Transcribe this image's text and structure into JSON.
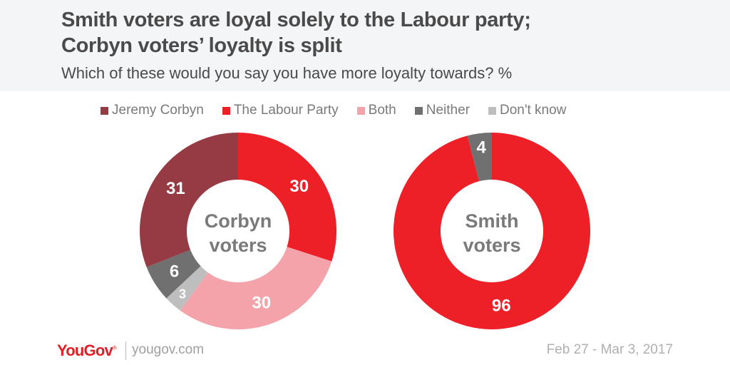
{
  "header": {
    "title_line1": "Smith voters are loyal solely to the Labour party;",
    "title_line2": "Corbyn voters’ loyalty is split",
    "subtitle": "Which of these would you say you have more loyalty towards? %"
  },
  "legend": [
    {
      "label": "Jeremy Corbyn",
      "color": "#963b44"
    },
    {
      "label": "The Labour Party",
      "color": "#ed1f27"
    },
    {
      "label": "Both",
      "color": "#f5a3aa"
    },
    {
      "label": "Neither",
      "color": "#707070"
    },
    {
      "label": "Don't know",
      "color": "#bebebe"
    }
  ],
  "footer": {
    "brand": "YouGov",
    "url": "yougov.com",
    "date_range": "Feb 27 - Mar 3, 2017"
  },
  "chart_data": [
    {
      "type": "pie",
      "subtype": "donut",
      "title": "Corbyn voters",
      "categories": [
        "The Labour Party",
        "Both",
        "Don't know",
        "Neither",
        "Jeremy Corbyn"
      ],
      "values": [
        30,
        30,
        3,
        6,
        31
      ],
      "colors": [
        "#ed1f27",
        "#f5a3aa",
        "#bebebe",
        "#707070",
        "#963b44"
      ],
      "center_label": [
        "Corbyn",
        "voters"
      ]
    },
    {
      "type": "pie",
      "subtype": "donut",
      "title": "Smith voters",
      "categories": [
        "The Labour Party",
        "Neither"
      ],
      "values": [
        96,
        4
      ],
      "colors": [
        "#ed1f27",
        "#707070"
      ],
      "center_label": [
        "Smith",
        "voters"
      ]
    }
  ]
}
